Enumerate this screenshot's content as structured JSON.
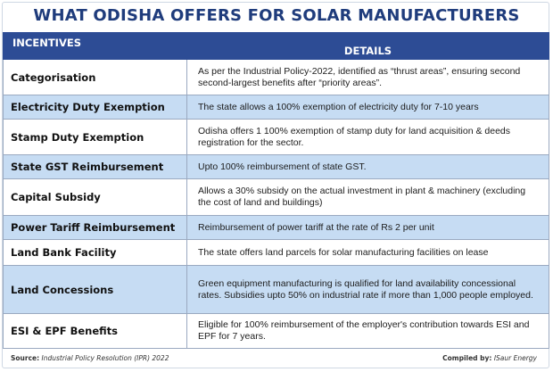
{
  "title": "WHAT ODISHA OFFERS FOR SOLAR MANUFACTURERS",
  "headers": {
    "incentives": "INCENTIVES",
    "details": "DETAILS"
  },
  "rows": [
    {
      "incentive": "Categorisation",
      "details": "As per the Industrial Policy-2022, identified as “thrust areas”, ensuring second second-largest benefits after “priority areas”."
    },
    {
      "incentive": "Electricity Duty Exemption",
      "details": "The state allows a 100% exemption of electricity duty for 7-10 years"
    },
    {
      "incentive": "Stamp Duty Exemption",
      "details": "Odisha offers 1 100% exemption of stamp duty for land acquisition & deeds registration for the sector."
    },
    {
      "incentive": "State GST Reimbursement",
      "details": "Upto 100% reimbursement of state GST."
    },
    {
      "incentive": "Capital Subsidy",
      "details": "Allows a 30% subsidy on the actual investment in plant & machinery (excluding the cost of land and buildings)"
    },
    {
      "incentive": "Power Tariff Reimbursement",
      "details": "Reimbursement of power tariff at the rate of Rs 2 per unit"
    },
    {
      "incentive": "Land Bank Facility",
      "details": "The state offers land parcels for solar manufacturing facilities on lease"
    },
    {
      "incentive": "Land Concessions",
      "details": "Green equipment manufacturing is qualified for land availability concessional rates. Subsidies upto 50% on industrial rate if more than 1,000 people employed."
    },
    {
      "incentive": "ESI & EPF Benefits",
      "details": "Eligible for 100% reimbursement of the employer's contribution towards ESI and EPF for 7 years."
    }
  ],
  "footer": {
    "source_label": "Source:",
    "source_text": "Industrial Policy Resolution (IPR) 2022",
    "compiled_label": "Compiled by:",
    "compiled_text": "ISaur Energy"
  }
}
